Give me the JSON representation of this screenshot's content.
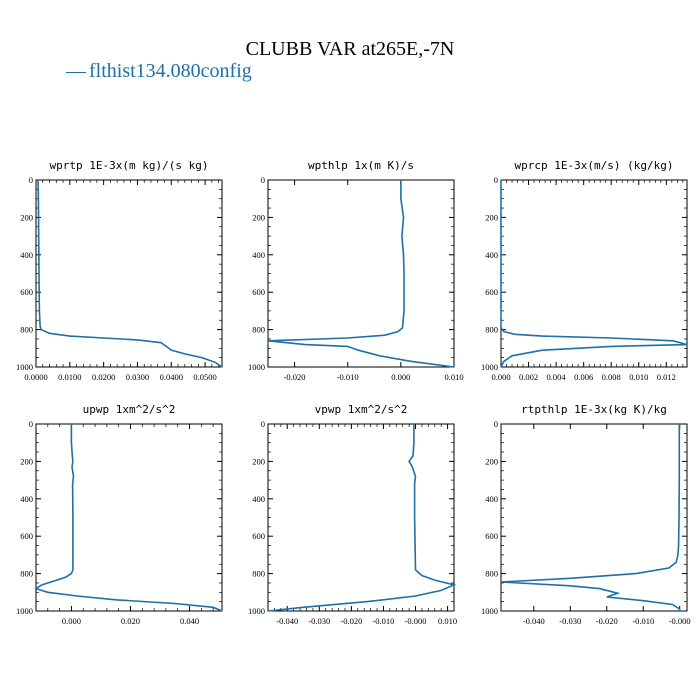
{
  "figure": {
    "title": "CLUBB VAR at265E,-7N",
    "legend": [
      {
        "label": "flthist134.080config",
        "marker": "—",
        "color": "#1f6fa8"
      }
    ]
  },
  "chart_data": [
    {
      "type": "line",
      "title": "wprtp   1E-3x(m kg)/(s kg)",
      "xlim": [
        0.0,
        0.055
      ],
      "ylim": [
        1000,
        0
      ],
      "grid": false,
      "xticks": [
        0.0,
        0.01,
        0.02,
        0.03,
        0.04,
        0.05
      ],
      "xticklabels": [
        "0.0000",
        "0.0100",
        "0.0200",
        "0.0300",
        "0.0400",
        "0.0500"
      ],
      "yticks": [
        0,
        200,
        400,
        600,
        800,
        1000
      ],
      "yticklabels": [
        "0",
        "200",
        "400",
        "600",
        "800",
        "1000"
      ],
      "series": [
        {
          "color": "#1f6fa8",
          "x": [
            0.0006,
            0.0007,
            0.0008,
            0.0009,
            0.001,
            0.0012,
            0.0015,
            0.004,
            0.01,
            0.02,
            0.03,
            0.037,
            0.0385,
            0.04,
            0.044,
            0.049,
            0.053,
            0.055
          ],
          "y": [
            0,
            100,
            300,
            500,
            700,
            780,
            800,
            820,
            835,
            845,
            855,
            870,
            890,
            910,
            930,
            950,
            975,
            1000
          ]
        }
      ]
    },
    {
      "type": "line",
      "title": "wpthlp   1x(m K)/s",
      "xlim": [
        -0.025,
        0.01
      ],
      "ylim": [
        1000,
        0
      ],
      "grid": false,
      "xticks": [
        -0.02,
        -0.01,
        0.0,
        0.01
      ],
      "xticklabels": [
        "-0.020",
        "-0.010",
        "0.000",
        "0.010"
      ],
      "yticks": [
        0,
        200,
        400,
        600,
        800,
        1000
      ],
      "yticklabels": [
        "0",
        "200",
        "400",
        "600",
        "800",
        "1000"
      ],
      "series": [
        {
          "color": "#1f6fa8",
          "x": [
            0.0,
            0.0,
            0.0005,
            0.0002,
            0.0005,
            0.0006,
            0.0006,
            0.0003,
            -0.0005,
            -0.003,
            -0.01,
            -0.025,
            -0.018,
            -0.01,
            -0.008,
            -0.004,
            0.002,
            0.01
          ],
          "y": [
            0,
            100,
            200,
            300,
            400,
            500,
            700,
            790,
            810,
            830,
            845,
            860,
            880,
            890,
            910,
            940,
            970,
            1000
          ]
        }
      ]
    },
    {
      "type": "line",
      "title": "wprcp   1E-3x(m/s) (kg/kg)",
      "xlim": [
        0.0,
        0.0135
      ],
      "ylim": [
        1000,
        0
      ],
      "grid": false,
      "xticks": [
        0.0,
        0.002,
        0.004,
        0.006,
        0.008,
        0.01,
        0.012
      ],
      "xticklabels": [
        "0.000",
        "0.002",
        "0.004",
        "0.006",
        "0.008",
        "0.010",
        "0.012"
      ],
      "yticks": [
        0,
        200,
        400,
        600,
        800,
        1000
      ],
      "yticklabels": [
        "0",
        "200",
        "400",
        "600",
        "800",
        "1000"
      ],
      "series": [
        {
          "color": "#1f6fa8",
          "x": [
            0.0,
            0.0,
            0.0,
            0.0002,
            0.001,
            0.003,
            0.008,
            0.0125,
            0.0135,
            0.008,
            0.003,
            0.0008,
            0.0002,
            0.0
          ],
          "y": [
            0,
            500,
            790,
            810,
            825,
            835,
            845,
            860,
            880,
            890,
            910,
            940,
            970,
            1000
          ]
        }
      ]
    },
    {
      "type": "line",
      "title": "upwp   1xm^2/s^2",
      "xlim": [
        -0.012,
        0.051
      ],
      "ylim": [
        1000,
        0
      ],
      "grid": false,
      "xticks": [
        0.0,
        0.02,
        0.04
      ],
      "xticklabels": [
        "0.000",
        "0.020",
        "0.040"
      ],
      "yticks": [
        0,
        200,
        400,
        600,
        800,
        1000
      ],
      "yticklabels": [
        "0",
        "200",
        "400",
        "600",
        "800",
        "1000"
      ],
      "series": [
        {
          "color": "#1f6fa8",
          "x": [
            0.0,
            0.0,
            0.0003,
            0.0005,
            0.0002,
            0.0007,
            0.0004,
            0.0005,
            0.0005,
            0.0,
            -0.002,
            -0.006,
            -0.01,
            -0.012,
            -0.008,
            0.002,
            0.015,
            0.035,
            0.048,
            0.051
          ],
          "y": [
            0,
            100,
            170,
            200,
            230,
            280,
            320,
            500,
            780,
            800,
            820,
            840,
            860,
            880,
            900,
            920,
            940,
            960,
            980,
            1000
          ]
        }
      ]
    },
    {
      "type": "line",
      "title": "vpwp   1xm^2/s^2",
      "xlim": [
        -0.046,
        0.012
      ],
      "ylim": [
        1000,
        0
      ],
      "grid": false,
      "xticks": [
        -0.04,
        -0.03,
        -0.02,
        -0.01,
        0.0,
        0.01
      ],
      "xticklabels": [
        "-0.040",
        "-0.030",
        "-0.020",
        "-0.010",
        "-0.000",
        "0.010"
      ],
      "yticks": [
        0,
        200,
        400,
        600,
        800,
        1000
      ],
      "yticklabels": [
        "0",
        "200",
        "400",
        "600",
        "800",
        "1000"
      ],
      "series": [
        {
          "color": "#1f6fa8",
          "x": [
            -0.0005,
            -0.0005,
            -0.0008,
            -0.002,
            -0.001,
            0.0,
            -0.0003,
            -0.0003,
            0.0,
            0.002,
            0.006,
            0.012,
            0.008,
            0.0,
            -0.015,
            -0.035,
            -0.046
          ],
          "y": [
            0,
            100,
            170,
            200,
            230,
            280,
            320,
            500,
            780,
            810,
            835,
            860,
            890,
            920,
            950,
            980,
            1000
          ]
        }
      ]
    },
    {
      "type": "line",
      "title": "rtpthlp   1E-3x(kg K)/kg",
      "xlim": [
        -0.049,
        0.002
      ],
      "ylim": [
        1000,
        0
      ],
      "grid": false,
      "xticks": [
        -0.04,
        -0.03,
        -0.02,
        -0.01,
        0.0
      ],
      "xticklabels": [
        "-0.040",
        "-0.030",
        "-0.020",
        "-0.010",
        "-0.000"
      ],
      "yticks": [
        0,
        200,
        400,
        600,
        800,
        1000
      ],
      "yticklabels": [
        "0",
        "200",
        "400",
        "600",
        "800",
        "1000"
      ],
      "series": [
        {
          "color": "#1f6fa8",
          "x": [
            -0.0001,
            -0.0001,
            -0.0002,
            -0.0003,
            -0.0005,
            -0.001,
            -0.003,
            -0.012,
            -0.03,
            -0.049,
            -0.03,
            -0.022,
            -0.017,
            -0.02,
            -0.01,
            -0.002,
            0.0,
            0.0
          ],
          "y": [
            0,
            300,
            500,
            650,
            700,
            740,
            770,
            800,
            825,
            845,
            865,
            880,
            905,
            925,
            945,
            965,
            990,
            1000
          ]
        }
      ]
    }
  ]
}
